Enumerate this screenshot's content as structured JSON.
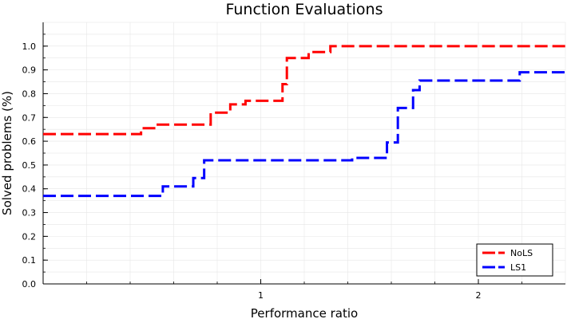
{
  "chart_data": {
    "type": "line",
    "step": true,
    "title": "Function Evaluations",
    "xlabel": "Performance ratio",
    "ylabel": "Solved problems (%)",
    "xlim": [
      0,
      2.4
    ],
    "ylim": [
      0,
      1.1
    ],
    "x_ticks": [
      1,
      2
    ],
    "x_tick_labels": [
      "1",
      "2"
    ],
    "y_ticks": [
      0.0,
      0.1,
      0.2,
      0.3,
      0.4,
      0.5,
      0.6,
      0.7,
      0.8,
      0.9,
      1.0
    ],
    "y_tick_labels": [
      "0.0",
      "0.1",
      "0.2",
      "0.3",
      "0.4",
      "0.5",
      "0.6",
      "0.7",
      "0.8",
      "0.9",
      "1.0"
    ],
    "grid": true,
    "line_style": "dashed",
    "legend_position": "bottom-right",
    "series": [
      {
        "name": "NoLS",
        "color": "#ff0000",
        "x": [
          0,
          0.45,
          0.52,
          0.77,
          0.86,
          0.93,
          1.1,
          1.12,
          1.22,
          1.32,
          2.4
        ],
        "y": [
          0.63,
          0.655,
          0.67,
          0.72,
          0.755,
          0.77,
          0.84,
          0.95,
          0.975,
          1.0,
          1.0
        ]
      },
      {
        "name": "LS1",
        "color": "#0000ff",
        "x": [
          0,
          0.55,
          0.69,
          0.74,
          1.42,
          1.47,
          1.58,
          1.63,
          1.66,
          1.7,
          1.73,
          2.19,
          2.4
        ],
        "y": [
          0.37,
          0.41,
          0.445,
          0.52,
          0.53,
          0.53,
          0.595,
          0.74,
          0.74,
          0.815,
          0.855,
          0.89,
          0.89
        ]
      }
    ]
  }
}
